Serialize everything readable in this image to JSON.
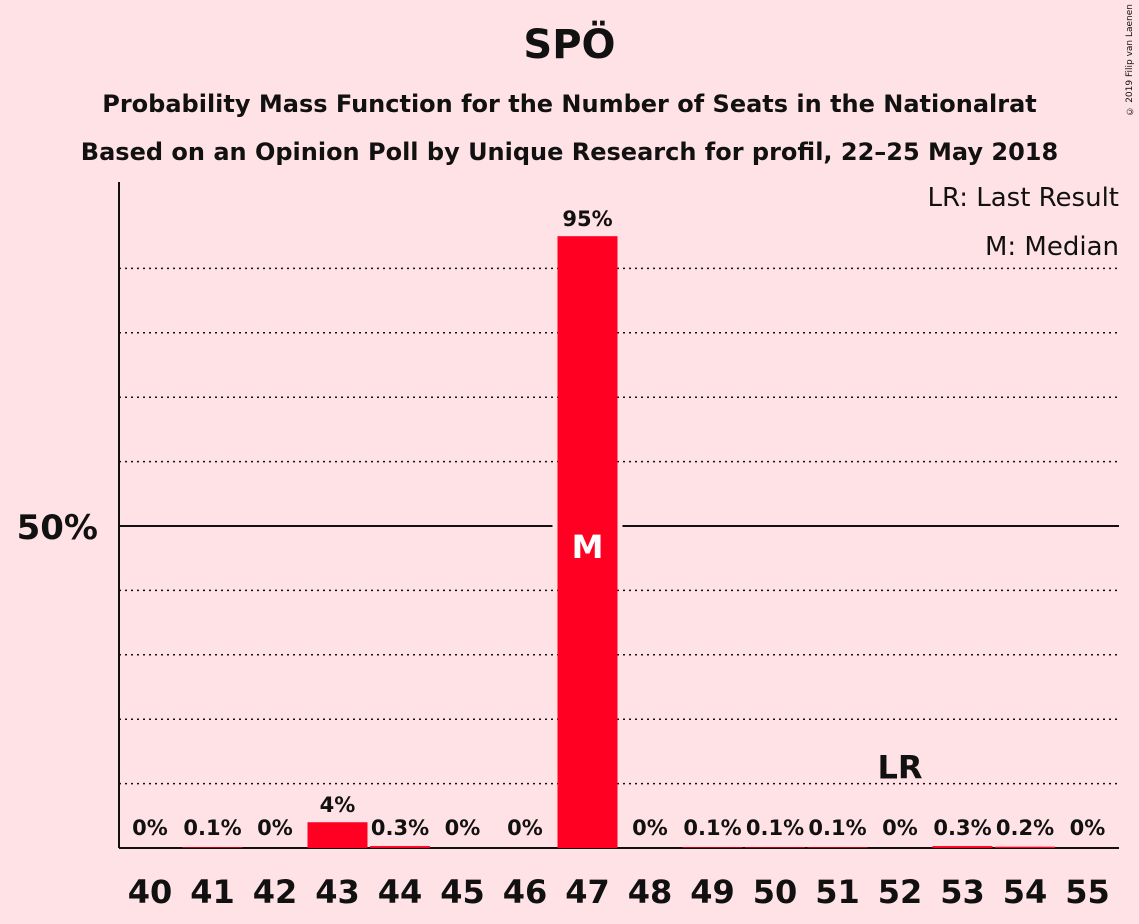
{
  "header": {
    "title": "SPÖ",
    "subtitle1": "Probability Mass Function for the Number of Seats in the Nationalrat",
    "subtitle2": "Based on an Opinion Poll by Unique Research for profil, 22–25 May 2018",
    "credit": "© 2019 Filip van Laenen"
  },
  "legend": {
    "last_result": "LR: Last Result",
    "median": "M: Median"
  },
  "chart_data": {
    "type": "bar",
    "categories": [
      "40",
      "41",
      "42",
      "43",
      "44",
      "45",
      "46",
      "47",
      "48",
      "49",
      "50",
      "51",
      "52",
      "53",
      "54",
      "55"
    ],
    "values": [
      0,
      0.1,
      0,
      4,
      0.3,
      0,
      0,
      95,
      0,
      0.1,
      0.1,
      0.1,
      0,
      0.3,
      0.2,
      0
    ],
    "labels": [
      "0%",
      "0.1%",
      "0%",
      "4%",
      "0.3%",
      "0%",
      "0%",
      "95%",
      "0%",
      "0.1%",
      "0.1%",
      "0.1%",
      "0%",
      "0.3%",
      "0.2%",
      "0%"
    ],
    "ylim": [
      0,
      100
    ],
    "y_tick_label": "50%",
    "median_seat": "47",
    "median_marker": "M",
    "last_result_seat": "52",
    "last_result_marker": "LR",
    "bar_color": "#ff0022",
    "grid": true
  }
}
